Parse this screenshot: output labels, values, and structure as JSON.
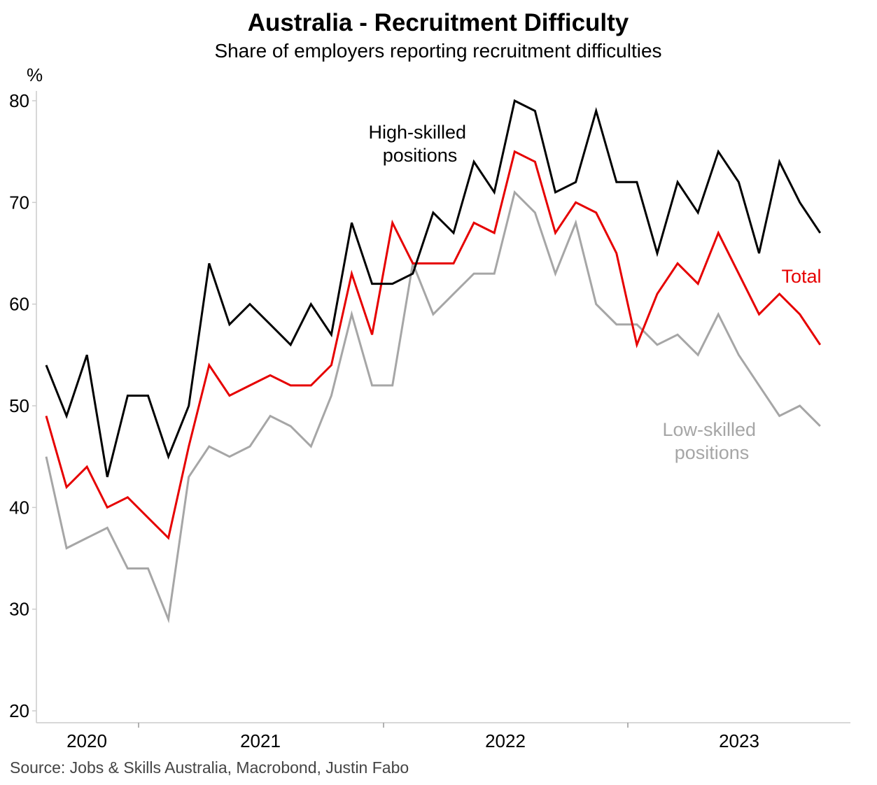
{
  "chart_data": {
    "type": "line",
    "title": "Australia - Recruitment Difficulty",
    "subtitle": "Share of employers reporting recruitment difficulties",
    "ylabel": "%",
    "xlabel": "",
    "ylim": [
      20,
      80
    ],
    "yticks": [
      20,
      30,
      40,
      50,
      60,
      70,
      80
    ],
    "year_labels": [
      "2020",
      "2021",
      "2022",
      "2023"
    ],
    "grid": false,
    "source": "Source: Jobs & Skills Australia, Macrobond, Justin Fabo",
    "series": [
      {
        "name": "High-skilled positions",
        "label_lines": [
          "High-skilled",
          "positions"
        ],
        "color": "#000000",
        "values": [
          54,
          49,
          55,
          43,
          51,
          51,
          45,
          50,
          64,
          58,
          60,
          58,
          56,
          60,
          57,
          68,
          62,
          62,
          63,
          69,
          67,
          74,
          71,
          80,
          79,
          71,
          72,
          79,
          72,
          72,
          65,
          72,
          69,
          75,
          72,
          65,
          74,
          70,
          67
        ]
      },
      {
        "name": "Total",
        "label_lines": [
          "Total"
        ],
        "color": "#e60000",
        "values": [
          49,
          42,
          44,
          40,
          41,
          39,
          37,
          46,
          54,
          51,
          52,
          53,
          52,
          52,
          54,
          63,
          57,
          68,
          64,
          64,
          64,
          68,
          67,
          75,
          74,
          67,
          70,
          69,
          65,
          56,
          61,
          64,
          62,
          67,
          63,
          59,
          61,
          59,
          56
        ]
      },
      {
        "name": "Low-skilled positions",
        "label_lines": [
          "Low-skilled",
          "positions"
        ],
        "color": "#a6a6a6",
        "values": [
          45,
          36,
          37,
          38,
          34,
          34,
          29,
          43,
          46,
          45,
          46,
          49,
          48,
          46,
          51,
          59,
          52,
          52,
          64,
          59,
          61,
          63,
          63,
          71,
          69,
          63,
          68,
          60,
          58,
          58,
          56,
          57,
          55,
          59,
          55,
          52,
          49,
          50,
          48
        ]
      }
    ]
  }
}
